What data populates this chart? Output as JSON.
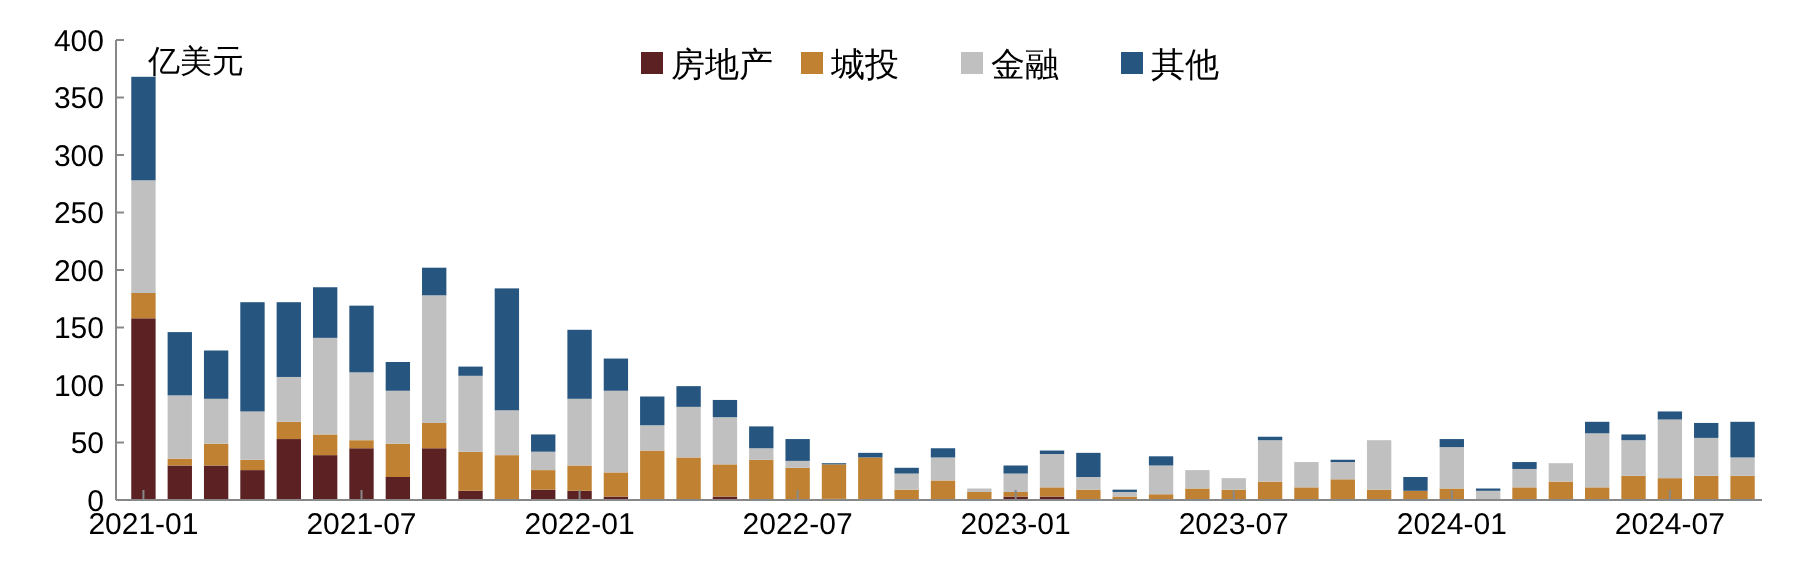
{
  "chart_data": {
    "type": "bar",
    "stacked": true,
    "ylabel": "亿美元",
    "legend": "top",
    "grid": false,
    "categories": [
      "2021-01",
      null,
      null,
      null,
      null,
      null,
      "2021-07",
      null,
      null,
      null,
      null,
      null,
      "2022-01",
      null,
      null,
      null,
      null,
      null,
      "2022-07",
      null,
      null,
      null,
      null,
      null,
      "2023-01",
      null,
      null,
      null,
      null,
      null,
      "2023-07",
      null,
      null,
      null,
      null,
      null,
      "2024-01",
      null,
      null,
      null,
      null,
      null,
      "2024-07",
      null,
      null
    ],
    "ylim": [
      0,
      400
    ],
    "yticks": [
      0,
      50,
      100,
      150,
      200,
      250,
      300,
      350,
      400
    ],
    "series": [
      {
        "name": "房地产",
        "color": "#5c2223",
        "values": [
          158,
          30,
          30,
          26,
          53,
          39,
          45,
          20,
          45,
          8,
          0,
          9,
          8,
          3,
          0,
          0,
          3,
          0,
          0,
          1,
          0,
          0,
          0,
          0,
          3,
          3,
          0,
          0,
          0,
          0,
          0,
          0,
          0,
          0,
          0,
          0,
          0,
          0,
          0,
          0,
          0,
          0,
          0,
          0,
          0
        ]
      },
      {
        "name": "城投",
        "color": "#c08232",
        "values": [
          22,
          6,
          19,
          9,
          15,
          18,
          7,
          29,
          22,
          34,
          39,
          17,
          22,
          21,
          43,
          37,
          28,
          35,
          28,
          30,
          37,
          9,
          17,
          7,
          4,
          8,
          9,
          3,
          5,
          10,
          9,
          16,
          11,
          18,
          9,
          8,
          10,
          0,
          11,
          16,
          11,
          21,
          19,
          21,
          21
        ]
      },
      {
        "name": "金融",
        "color": "#c0c0c0",
        "values": [
          98,
          55,
          39,
          42,
          39,
          84,
          59,
          46,
          111,
          66,
          39,
          16,
          58,
          71,
          22,
          44,
          41,
          10,
          6,
          0,
          0,
          14,
          20,
          3,
          16,
          29,
          11,
          4,
          25,
          16,
          10,
          36,
          22,
          15,
          43,
          0,
          36,
          8,
          16,
          16,
          47,
          31,
          51,
          33,
          16
        ]
      },
      {
        "name": "其他",
        "color": "#26557f",
        "values": [
          90,
          55,
          42,
          95,
          65,
          44,
          58,
          25,
          24,
          8,
          106,
          15,
          60,
          28,
          25,
          18,
          15,
          19,
          19,
          1,
          4,
          5,
          8,
          0,
          7,
          3,
          21,
          2,
          8,
          0,
          0,
          3,
          0,
          2,
          0,
          12,
          7,
          2,
          6,
          0,
          10,
          5,
          7,
          13,
          31
        ]
      }
    ]
  }
}
